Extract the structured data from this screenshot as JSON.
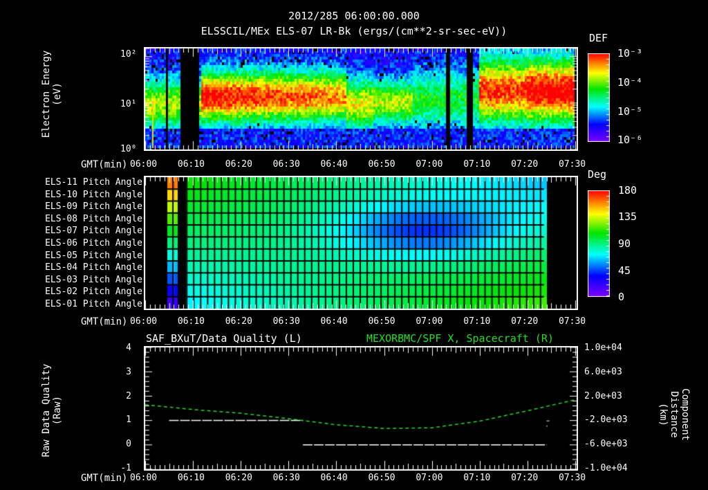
{
  "header": {
    "timestamp": "2012/285 06:00:00.000",
    "subtitle": "ELSSCIL/MEx ELS-07 LR-Bk  (ergs/(cm**2-sr-sec-eV))"
  },
  "panel1": {
    "ylabel_line1": "Electron Energy",
    "ylabel_line2": "(eV)",
    "yticks": [
      "10²",
      "10¹",
      "10⁰"
    ],
    "xlabel": "GMT(min)",
    "xticks": [
      "06:00",
      "06:10",
      "06:20",
      "06:30",
      "06:40",
      "06:50",
      "07:00",
      "07:10",
      "07:20",
      "07:30"
    ],
    "colorbar": {
      "title": "DEF",
      "ticks": [
        "10⁻³",
        "10⁻⁴",
        "10⁻⁵",
        "10⁻⁶"
      ]
    }
  },
  "panel2": {
    "rows": [
      "ELS-11 Pitch Angle",
      "ELS-10 Pitch Angle",
      "ELS-09 Pitch Angle",
      "ELS-08 Pitch Angle",
      "ELS-07 Pitch Angle",
      "ELS-06 Pitch Angle",
      "ELS-05 Pitch Angle",
      "ELS-04 Pitch Angle",
      "ELS-03 Pitch Angle",
      "ELS-02 Pitch Angle",
      "ELS-01 Pitch Angle"
    ],
    "xlabel": "GMT(min)",
    "xticks": [
      "06:00",
      "06:10",
      "06:20",
      "06:30",
      "06:40",
      "06:50",
      "07:00",
      "07:10",
      "07:20",
      "07:30"
    ],
    "colorbar": {
      "title": "Deg",
      "ticks": [
        "180",
        "135",
        "90",
        "45",
        "0"
      ]
    }
  },
  "panel3": {
    "title_left": "SAF_BXuT/Data Quality (L)",
    "title_right": "MEXORBMC/SPF X, Spacecraft (R)",
    "ylabel_left_line1": "Raw Data Quality",
    "ylabel_left_line2": "(Raw)",
    "ylabel_right_line1": "Component Distance",
    "ylabel_right_line2": "(km)",
    "yticks_left": [
      "4",
      "3",
      "2",
      "1",
      "0",
      "-1"
    ],
    "yticks_right": [
      "1.0e+04",
      "6.0e+03",
      "2.0e+03",
      "-2.0e+03",
      "-6.0e+03",
      "-1.0e+04"
    ],
    "xlabel": "GMT(min)",
    "xticks": [
      "06:00",
      "06:10",
      "06:20",
      "06:30",
      "06:40",
      "06:50",
      "07:00",
      "07:10",
      "07:20",
      "07:30"
    ]
  },
  "colors": {
    "background": "#000000",
    "axis": "#ffffff",
    "spacecraft_trace": "#22dd22",
    "quality_trace": "#ffffff"
  },
  "chart_data": [
    {
      "type": "heatmap",
      "title": "ELSSCIL/MEx ELS-07 LR-Bk (ergs/(cm**2-sr-sec-eV))",
      "xlabel": "GMT(min)",
      "ylabel": "Electron Energy (eV)",
      "x_range": [
        "06:00",
        "07:30"
      ],
      "y_range": [
        1,
        150
      ],
      "y_scale": "log",
      "color_scale": {
        "label": "DEF",
        "min": 1e-06,
        "max": 0.001,
        "scale": "log"
      },
      "data_gaps_min": [
        [
          4.2,
          5.0
        ],
        [
          7.5,
          11.5
        ],
        [
          63.0,
          64.0
        ],
        [
          67.5,
          68.5
        ]
      ],
      "features": [
        {
          "time_min": [
            12,
            42
          ],
          "energy_eV": [
            15,
            40
          ],
          "level": "peak ~3e-4 (red/orange)"
        },
        {
          "time_min": [
            42,
            55
          ],
          "energy_eV": [
            5,
            30
          ],
          "level": "~1e-5 to 5e-5 (green/cyan)"
        },
        {
          "time_min": [
            55,
            70
          ],
          "energy_eV": [
            5,
            40
          ],
          "level": "~5e-6 (blue/cyan)"
        },
        {
          "time_min": [
            70,
            90
          ],
          "energy_eV": [
            10,
            100
          ],
          "level": "peak ~3e-4 (red/yellow)"
        }
      ]
    },
    {
      "type": "heatmap",
      "title": "ELS Pitch Angle",
      "xlabel": "GMT(min)",
      "x_range": [
        "06:00",
        "07:30"
      ],
      "categories": [
        "ELS-11",
        "ELS-10",
        "ELS-09",
        "ELS-08",
        "ELS-07",
        "ELS-06",
        "ELS-05",
        "ELS-04",
        "ELS-03",
        "ELS-02",
        "ELS-01"
      ],
      "color_scale": {
        "label": "Deg",
        "min": 0,
        "max": 180
      },
      "valid_time_min": [
        [
          4.6,
          6.7
        ],
        [
          8.5,
          84.0
        ]
      ],
      "features": [
        {
          "time_min": [
            4.6,
            6.7
          ],
          "note": "ELS-11 ~160°, decreasing to ELS-01 ~20°"
        },
        {
          "time_min": [
            8.5,
            30
          ],
          "note": "upper anodes ~100°, lower anodes ~65°"
        },
        {
          "time_min": [
            45,
            65
          ],
          "note": "ELS-08..06 minimum ~35°"
        },
        {
          "time_min": [
            60,
            84
          ],
          "note": "ELS-01..03 ~95-110°"
        }
      ]
    },
    {
      "type": "line",
      "title": "SAF_BXuT/Data Quality (L) / MEXORBMC/SPF X, Spacecraft (R)",
      "xlabel": "GMT(min)",
      "x_range": [
        "06:00",
        "07:30"
      ],
      "series": [
        {
          "name": "Raw Data Quality (L)",
          "axis": "left",
          "ylim": [
            -1,
            4
          ],
          "points": [
            [
              "06:05",
              1
            ],
            [
              "06:33",
              1
            ],
            [
              "06:33",
              0
            ],
            [
              "07:24",
              0
            ],
            [
              "07:24",
              1
            ]
          ]
        },
        {
          "name": "SPF X, Spacecraft (R) km",
          "axis": "right",
          "ylim": [
            -10000,
            10000
          ],
          "points": [
            [
              "06:00",
              600
            ],
            [
              "06:10",
              -200
            ],
            [
              "06:20",
              -800
            ],
            [
              "06:30",
              -1700
            ],
            [
              "06:40",
              -2700
            ],
            [
              "06:50",
              -3300
            ],
            [
              "07:00",
              -3200
            ],
            [
              "07:10",
              -2100
            ],
            [
              "07:20",
              -400
            ],
            [
              "07:30",
              1400
            ]
          ]
        }
      ]
    }
  ]
}
